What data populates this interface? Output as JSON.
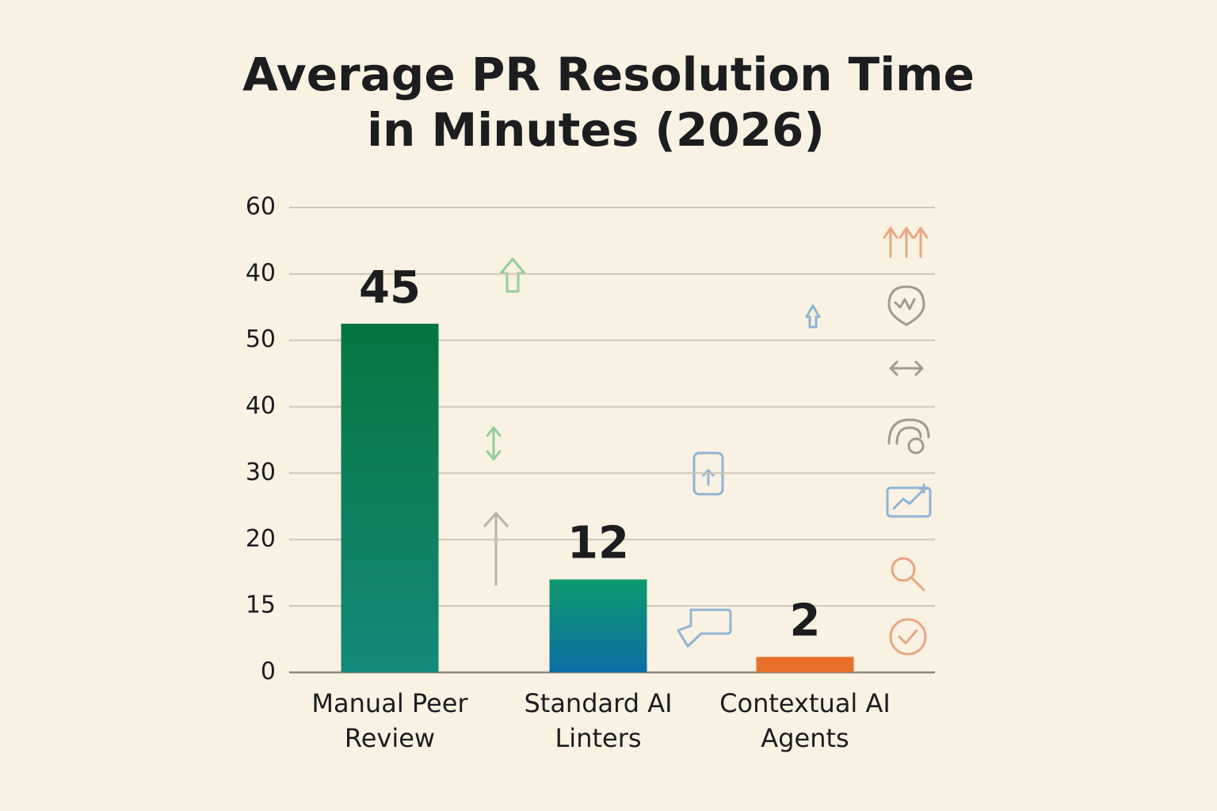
{
  "chart_data": {
    "type": "bar",
    "title_lines": [
      "Average PR Resolution Time",
      "in Minutes (2026)"
    ],
    "categories": [
      [
        "Manual Peer",
        "Review"
      ],
      [
        "Standard AI",
        "Linters"
      ],
      [
        "Contextual AI",
        "Agents"
      ]
    ],
    "values": [
      45,
      12,
      2
    ],
    "colors": [
      [
        "#05763e",
        "#138a7a"
      ],
      [
        "#0d9a6e",
        "#0c6ea4"
      ],
      [
        "#e96f2a",
        "#e4702a"
      ]
    ],
    "ylim": [
      0,
      60
    ],
    "y_axis_labels": [
      0,
      15,
      20,
      30,
      40,
      50,
      40,
      60
    ],
    "grid": true
  }
}
